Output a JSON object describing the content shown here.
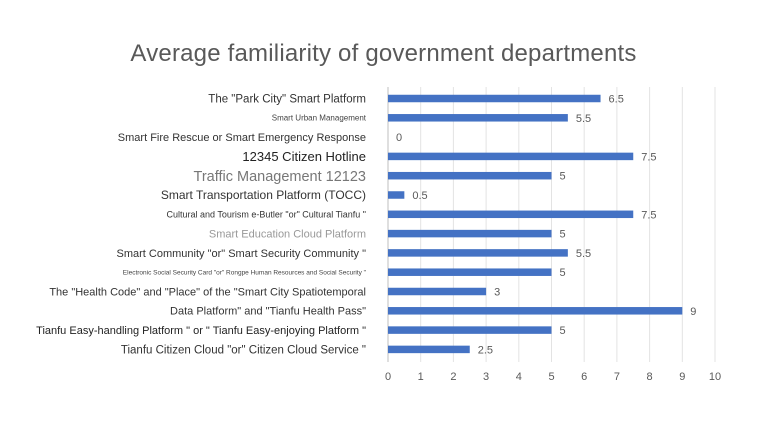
{
  "chart_data": {
    "type": "bar",
    "orientation": "horizontal",
    "title": "Average familiarity of government departments",
    "xlabel": "",
    "ylabel": "",
    "xlim": [
      0,
      10
    ],
    "xticks": [
      0,
      1,
      2,
      3,
      4,
      5,
      6,
      7,
      8,
      9,
      10
    ],
    "grid": "vertical",
    "legend": "none",
    "bar_color": "#4472c4",
    "categories": [
      "The \"Park City\" Smart Platform",
      "Smart Urban Management",
      "Smart Fire Rescue or Smart Emergency Response",
      "12345 Citizen Hotline",
      "Traffic Management 12123",
      "Smart Transportation Platform (TOCC)",
      "Cultural and Tourism e-Butler \"or\" Cultural Tianfu \"",
      "Smart Education Cloud Platform",
      "Smart Community \"or\" Smart Security Community \"",
      "Electronic Social Security Card \"or\" Rongpe Human Resources and Social Security \"",
      "The \"Health Code\" and \"Place\" of the \"Smart City Spatiotemporal",
      "Data Platform\" and \"Tianfu Health Pass\"",
      "Tianfu Easy-handling Platform \" or \" Tianfu Easy-enjoying Platform \"",
      "Tianfu Citizen Cloud \"or\" Citizen Cloud Service \""
    ],
    "values": [
      6.5,
      5.5,
      0,
      7.5,
      5,
      0.5,
      7.5,
      5,
      5.5,
      5,
      3,
      9,
      5,
      2.5
    ]
  }
}
